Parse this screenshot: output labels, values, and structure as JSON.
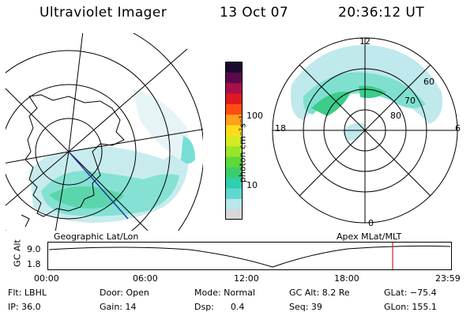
{
  "header": {
    "instrument": "Ultraviolet Imager",
    "date": "13 Oct 07",
    "time": "20:36:12 UT"
  },
  "left_panel": {
    "caption": "Geographic Lat/Lon"
  },
  "right_panel": {
    "caption": "Apex MLat/MLT",
    "mlt_labels": {
      "top": "12",
      "left": "18",
      "right": "6",
      "bottom": "0"
    },
    "mlat_labels": [
      "60",
      "70",
      "80"
    ]
  },
  "colorbar": {
    "unit_label": "photon cm⁻²s⁻¹",
    "ticks": [
      "100",
      "10"
    ],
    "colors": [
      "#d8d8d8",
      "#b9e7ea",
      "#5fd9d0",
      "#2fcfb0",
      "#3ccd6a",
      "#5cd93a",
      "#9ae42c",
      "#d6ea24",
      "#ffdb1e",
      "#ffa11a",
      "#ff4d14",
      "#e01822",
      "#a8104a",
      "#5a0a4c",
      "#1c0a2e"
    ]
  },
  "timeline": {
    "axis_label": "GC Alt",
    "y_ticks": [
      "9.0",
      "1.8"
    ],
    "x_ticks": [
      "00:00",
      "06:00",
      "12:00",
      "18:00",
      "23:59"
    ],
    "marker_color": "#cc2222"
  },
  "footer": {
    "row1": [
      "Flt:  LBHL",
      "Door:  Open",
      "Mode:  Normal",
      "GC Alt:  8.2 Re",
      "GLat:  −75.4"
    ],
    "row2": [
      "IP:  36.0",
      "Gain:  14",
      "Dsp:      0.4",
      "Seq:  39",
      "GLon:  155.1"
    ]
  }
}
